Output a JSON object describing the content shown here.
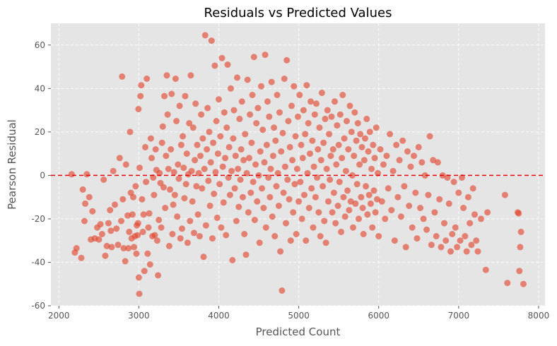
{
  "chart_data": {
    "type": "scatter",
    "title": "Residuals vs Predicted Values",
    "xlabel": "Predicted Count",
    "ylabel": "Pearson Residual",
    "xlim": [
      1900,
      8080
    ],
    "ylim": [
      -60,
      70
    ],
    "xticks": [
      2000,
      3000,
      4000,
      5000,
      6000,
      7000,
      8000
    ],
    "yticks": [
      -60,
      -40,
      -20,
      0,
      20,
      40,
      60
    ],
    "grid": true,
    "reference_line": {
      "y": 0,
      "color": "#e8000b",
      "style": "dashed"
    },
    "point_color": "#e24a33",
    "points": [
      [
        2160,
        0.5
      ],
      [
        2200,
        -35.5
      ],
      [
        2220,
        -33.5
      ],
      [
        2280,
        -38
      ],
      [
        2300,
        -6.5
      ],
      [
        2320,
        -21
      ],
      [
        2330,
        -13
      ],
      [
        2350,
        0.5
      ],
      [
        2380,
        -10
      ],
      [
        2400,
        -29.5
      ],
      [
        2420,
        -16.5
      ],
      [
        2450,
        -29
      ],
      [
        2480,
        -24
      ],
      [
        2500,
        -29.5
      ],
      [
        2520,
        -22.5
      ],
      [
        2540,
        -27
      ],
      [
        2560,
        -2
      ],
      [
        2580,
        -37
      ],
      [
        2600,
        -32.5
      ],
      [
        2620,
        -22
      ],
      [
        2640,
        -16
      ],
      [
        2650,
        -25.5
      ],
      [
        2660,
        -33
      ],
      [
        2680,
        2
      ],
      [
        2700,
        -13.5
      ],
      [
        2720,
        -24.5
      ],
      [
        2740,
        -32
      ],
      [
        2760,
        8
      ],
      [
        2780,
        -21
      ],
      [
        2790,
        45.5
      ],
      [
        2800,
        -11
      ],
      [
        2810,
        -33.5
      ],
      [
        2830,
        -39.5
      ],
      [
        2840,
        5
      ],
      [
        2860,
        -18.5
      ],
      [
        2870,
        -33.5
      ],
      [
        2880,
        -26
      ],
      [
        2890,
        20
      ],
      [
        2900,
        -8
      ],
      [
        2910,
        -29
      ],
      [
        2920,
        -18
      ],
      [
        2930,
        -10
      ],
      [
        2940,
        -33
      ],
      [
        2950,
        -28
      ],
      [
        2960,
        -5
      ],
      [
        2970,
        -36
      ],
      [
        2975,
        -23
      ],
      [
        2985,
        -27.5
      ],
      [
        2990,
        -22
      ],
      [
        2995,
        30.5
      ],
      [
        3000,
        -47
      ],
      [
        3005,
        -54.5
      ],
      [
        3010,
        3.5
      ],
      [
        3020,
        36.5
      ],
      [
        3030,
        41.5
      ],
      [
        3040,
        -11
      ],
      [
        3050,
        -26
      ],
      [
        3060,
        -18
      ],
      [
        3070,
        -44
      ],
      [
        3080,
        13
      ],
      [
        3090,
        -3
      ],
      [
        3100,
        44.5
      ],
      [
        3110,
        -36
      ],
      [
        3120,
        -24
      ],
      [
        3130,
        -17.5
      ],
      [
        3140,
        -41
      ],
      [
        3150,
        17
      ],
      [
        3160,
        8
      ],
      [
        3170,
        -28
      ],
      [
        3180,
        -1
      ],
      [
        3190,
        -9
      ],
      [
        3200,
        -27.5
      ],
      [
        3210,
        12
      ],
      [
        3220,
        2.5
      ],
      [
        3230,
        -30
      ],
      [
        3240,
        -46
      ],
      [
        3250,
        -20.5
      ],
      [
        3260,
        1
      ],
      [
        3270,
        -3.5
      ],
      [
        3280,
        -24
      ],
      [
        3290,
        15
      ],
      [
        3300,
        22.5
      ],
      [
        3310,
        -5.5
      ],
      [
        3320,
        36.5
      ],
      [
        3330,
        -15
      ],
      [
        3340,
        9
      ],
      [
        3350,
        46
      ],
      [
        3360,
        28
      ],
      [
        3370,
        3
      ],
      [
        3380,
        -32.5
      ],
      [
        3390,
        -6.5
      ],
      [
        3400,
        12
      ],
      [
        3410,
        37.5
      ],
      [
        3420,
        -27
      ],
      [
        3430,
        -13.5
      ],
      [
        3440,
        1.5
      ],
      [
        3450,
        -9
      ],
      [
        3460,
        44.5
      ],
      [
        3470,
        25
      ],
      [
        3480,
        -19
      ],
      [
        3490,
        5
      ],
      [
        3500,
        -1.5
      ],
      [
        3510,
        32
      ],
      [
        3520,
        -29
      ],
      [
        3530,
        14
      ],
      [
        3540,
        -24.5
      ],
      [
        3550,
        18
      ],
      [
        3560,
        3.5
      ],
      [
        3570,
        -10.5
      ],
      [
        3580,
        36.5
      ],
      [
        3590,
        -4
      ],
      [
        3600,
        10
      ],
      [
        3610,
        -31
      ],
      [
        3620,
        0.5
      ],
      [
        3630,
        24
      ],
      [
        3640,
        -21
      ],
      [
        3650,
        46
      ],
      [
        3660,
        2
      ],
      [
        3670,
        -12
      ],
      [
        3680,
        22
      ],
      [
        3690,
        -26.5
      ],
      [
        3700,
        7
      ],
      [
        3710,
        33
      ],
      [
        3720,
        -5
      ],
      [
        3730,
        14
      ],
      [
        3740,
        -18
      ],
      [
        3750,
        1
      ],
      [
        3760,
        -28
      ],
      [
        3770,
        9
      ],
      [
        3780,
        28
      ],
      [
        3790,
        -6
      ],
      [
        3800,
        17
      ],
      [
        3810,
        -37.5
      ],
      [
        3820,
        3
      ],
      [
        3830,
        64.5
      ],
      [
        3840,
        -23
      ],
      [
        3850,
        12
      ],
      [
        3860,
        31
      ],
      [
        3870,
        -2.5
      ],
      [
        3880,
        20
      ],
      [
        3890,
        -14
      ],
      [
        3900,
        6
      ],
      [
        3910,
        62
      ],
      [
        3920,
        -29
      ],
      [
        3930,
        15
      ],
      [
        3940,
        -8.5
      ],
      [
        3950,
        50.5
      ],
      [
        3960,
        1.5
      ],
      [
        3970,
        25
      ],
      [
        3980,
        -19.5
      ],
      [
        3990,
        10
      ],
      [
        4000,
        35
      ],
      [
        4010,
        -4
      ],
      [
        4020,
        18
      ],
      [
        4030,
        -24
      ],
      [
        4040,
        54
      ],
      [
        4050,
        4
      ],
      [
        4060,
        -12.5
      ],
      [
        4070,
        29
      ],
      [
        4080,
        8
      ],
      [
        4090,
        -27.5
      ],
      [
        4100,
        22
      ],
      [
        4110,
        51
      ],
      [
        4120,
        -1
      ],
      [
        4130,
        13
      ],
      [
        4140,
        -9
      ],
      [
        4150,
        40
      ],
      [
        4160,
        2
      ],
      [
        4170,
        -39
      ],
      [
        4180,
        17
      ],
      [
        4190,
        30
      ],
      [
        4200,
        -6
      ],
      [
        4210,
        9
      ],
      [
        4220,
        -21
      ],
      [
        4230,
        45
      ],
      [
        4240,
        3
      ],
      [
        4250,
        -14.5
      ],
      [
        4260,
        26
      ],
      [
        4270,
        -2
      ],
      [
        4280,
        12
      ],
      [
        4290,
        34
      ],
      [
        4300,
        -10
      ],
      [
        4310,
        7
      ],
      [
        4320,
        -27
      ],
      [
        4330,
        19
      ],
      [
        4340,
        -36.5
      ],
      [
        4350,
        1
      ],
      [
        4360,
        44
      ],
      [
        4370,
        -17
      ],
      [
        4380,
        8
      ],
      [
        4390,
        28
      ],
      [
        4400,
        -8
      ],
      [
        4410,
        15
      ],
      [
        4420,
        37
      ],
      [
        4430,
        -3
      ],
      [
        4440,
        54.5
      ],
      [
        4450,
        -20.5
      ],
      [
        4460,
        5
      ],
      [
        4470,
        24
      ],
      [
        4480,
        -12
      ],
      [
        4490,
        31
      ],
      [
        4500,
        0
      ],
      [
        4510,
        -31
      ],
      [
        4520,
        11
      ],
      [
        4530,
        41
      ],
      [
        4540,
        -6
      ],
      [
        4550,
        21
      ],
      [
        4560,
        -15
      ],
      [
        4570,
        6
      ],
      [
        4580,
        55.5
      ],
      [
        4590,
        -24
      ],
      [
        4600,
        14
      ],
      [
        4610,
        34
      ],
      [
        4620,
        -1
      ],
      [
        4630,
        27
      ],
      [
        4640,
        -10
      ],
      [
        4650,
        3
      ],
      [
        4660,
        43
      ],
      [
        4670,
        -19
      ],
      [
        4680,
        9
      ],
      [
        4690,
        22
      ],
      [
        4700,
        -28
      ],
      [
        4710,
        16
      ],
      [
        4720,
        -5
      ],
      [
        4730,
        37
      ],
      [
        4740,
        1
      ],
      [
        4750,
        -14
      ],
      [
        4760,
        29
      ],
      [
        4770,
        -35
      ],
      [
        4780,
        11
      ],
      [
        4790,
        -53
      ],
      [
        4800,
        19.5
      ],
      [
        4810,
        -8
      ],
      [
        4820,
        44.5
      ],
      [
        4830,
        4
      ],
      [
        4840,
        -22
      ],
      [
        4850,
        53
      ],
      [
        4860,
        -2
      ],
      [
        4870,
        25
      ],
      [
        4880,
        -11
      ],
      [
        4890,
        13
      ],
      [
        4900,
        -30
      ],
      [
        4910,
        32
      ],
      [
        4920,
        7
      ],
      [
        4930,
        -17
      ],
      [
        4940,
        41
      ],
      [
        4950,
        -4
      ],
      [
        4960,
        18
      ],
      [
        4970,
        -27
      ],
      [
        4980,
        3
      ],
      [
        4990,
        27
      ],
      [
        5000,
        -12
      ],
      [
        5010,
        37
      ],
      [
        5020,
        -3
      ],
      [
        5030,
        14
      ],
      [
        5040,
        -20
      ],
      [
        5050,
        8
      ],
      [
        5060,
        30
      ],
      [
        5070,
        -9
      ],
      [
        5080,
        19
      ],
      [
        5090,
        -30
      ],
      [
        5100,
        41.5
      ],
      [
        5110,
        1
      ],
      [
        5120,
        24
      ],
      [
        5130,
        -15
      ],
      [
        5140,
        10
      ],
      [
        5150,
        34
      ],
      [
        5160,
        -6
      ],
      [
        5170,
        16
      ],
      [
        5180,
        -24
      ],
      [
        5190,
        4
      ],
      [
        5200,
        28
      ],
      [
        5210,
        -10
      ],
      [
        5220,
        33
      ],
      [
        5230,
        -1
      ],
      [
        5240,
        12
      ],
      [
        5250,
        -17
      ],
      [
        5260,
        22
      ],
      [
        5270,
        -28
      ],
      [
        5280,
        7
      ],
      [
        5290,
        38
      ],
      [
        5300,
        -5
      ],
      [
        5310,
        15
      ],
      [
        5320,
        -21
      ],
      [
        5330,
        26
      ],
      [
        5340,
        -31
      ],
      [
        5350,
        3
      ],
      [
        5360,
        30
      ],
      [
        5370,
        -12
      ],
      [
        5380,
        19
      ],
      [
        5390,
        -2
      ],
      [
        5400,
        9
      ],
      [
        5410,
        27
      ],
      [
        5420,
        -17
      ],
      [
        5430,
        12
      ],
      [
        5440,
        -8
      ],
      [
        5450,
        34
      ],
      [
        5460,
        -22
      ],
      [
        5470,
        5
      ],
      [
        5480,
        23
      ],
      [
        5490,
        -14
      ],
      [
        5500,
        14
      ],
      [
        5510,
        -3
      ],
      [
        5520,
        28
      ],
      [
        5530,
        -26
      ],
      [
        5540,
        8
      ],
      [
        5550,
        37
      ],
      [
        5560,
        -10
      ],
      [
        5570,
        17
      ],
      [
        5580,
        -19
      ],
      [
        5590,
        2
      ],
      [
        5600,
        25
      ],
      [
        5610,
        -7
      ],
      [
        5620,
        12
      ],
      [
        5630,
        -16
      ],
      [
        5640,
        32
      ],
      [
        5650,
        -12
      ],
      [
        5660,
        20
      ],
      [
        5670,
        0
      ],
      [
        5680,
        -24
      ],
      [
        5690,
        9
      ],
      [
        5700,
        29
      ],
      [
        5710,
        -13
      ],
      [
        5720,
        16
      ],
      [
        5730,
        -4
      ],
      [
        5740,
        24
      ],
      [
        5750,
        -20
      ],
      [
        5760,
        5
      ],
      [
        5770,
        19
      ],
      [
        5780,
        -10
      ],
      [
        5790,
        13
      ],
      [
        5800,
        -15
      ],
      [
        5810,
        -27
      ],
      [
        5820,
        7
      ],
      [
        5830,
        17
      ],
      [
        5840,
        -5
      ],
      [
        5850,
        26
      ],
      [
        5860,
        -18
      ],
      [
        5870,
        11
      ],
      [
        5880,
        -9
      ],
      [
        5890,
        20
      ],
      [
        5900,
        -13
      ],
      [
        5910,
        3
      ],
      [
        5920,
        -24
      ],
      [
        5930,
        14
      ],
      [
        5940,
        -7
      ],
      [
        5950,
        8
      ],
      [
        5960,
        -17
      ],
      [
        5970,
        22
      ],
      [
        5980,
        -11
      ],
      [
        5990,
        1
      ],
      [
        6000,
        -28
      ],
      [
        6020,
        12
      ],
      [
        6040,
        -12
      ],
      [
        6060,
        5
      ],
      [
        6080,
        -20
      ],
      [
        6100,
        9
      ],
      [
        6120,
        -6
      ],
      [
        6140,
        19
      ],
      [
        6160,
        -16
      ],
      [
        6180,
        2
      ],
      [
        6200,
        -30
      ],
      [
        6220,
        14
      ],
      [
        6240,
        -10
      ],
      [
        6260,
        7
      ],
      [
        6280,
        -19
      ],
      [
        6300,
        16
      ],
      [
        6320,
        -5
      ],
      [
        6340,
        -33
      ],
      [
        6360,
        11
      ],
      [
        6380,
        -14
      ],
      [
        6400,
        4
      ],
      [
        6420,
        -24
      ],
      [
        6440,
        9
      ],
      [
        6460,
        -8
      ],
      [
        6480,
        -29
      ],
      [
        6500,
        13
      ],
      [
        6520,
        -15
      ],
      [
        6540,
        6
      ],
      [
        6560,
        -20
      ],
      [
        6580,
        0
      ],
      [
        6600,
        -25
      ],
      [
        6620,
        -9
      ],
      [
        6640,
        18
      ],
      [
        6660,
        -32
      ],
      [
        6680,
        7
      ],
      [
        6700,
        -17
      ],
      [
        6720,
        -28
      ],
      [
        6740,
        6
      ],
      [
        6760,
        -11
      ],
      [
        6780,
        -33
      ],
      [
        6800,
        0
      ],
      [
        6820,
        -22
      ],
      [
        6840,
        -30
      ],
      [
        6860,
        -1
      ],
      [
        6880,
        -13
      ],
      [
        6900,
        -35
      ],
      [
        6920,
        -27
      ],
      [
        6940,
        -3
      ],
      [
        6960,
        -24
      ],
      [
        6980,
        -33
      ],
      [
        7000,
        -8
      ],
      [
        7020,
        -30
      ],
      [
        7040,
        -1
      ],
      [
        7060,
        -15
      ],
      [
        7080,
        -28
      ],
      [
        7100,
        -35
      ],
      [
        7120,
        -10
      ],
      [
        7140,
        -22
      ],
      [
        7160,
        -32
      ],
      [
        7180,
        -6
      ],
      [
        7200,
        -18
      ],
      [
        7220,
        -30
      ],
      [
        7240,
        -35
      ],
      [
        7280,
        -20
      ],
      [
        7340,
        -43.5
      ],
      [
        7360,
        -17
      ],
      [
        7580,
        -9
      ],
      [
        7610,
        -49.5
      ],
      [
        7740,
        -17
      ],
      [
        7750,
        -17.5
      ],
      [
        7760,
        -44
      ],
      [
        7770,
        -33
      ],
      [
        7780,
        -26
      ],
      [
        7810,
        -50
      ]
    ]
  }
}
